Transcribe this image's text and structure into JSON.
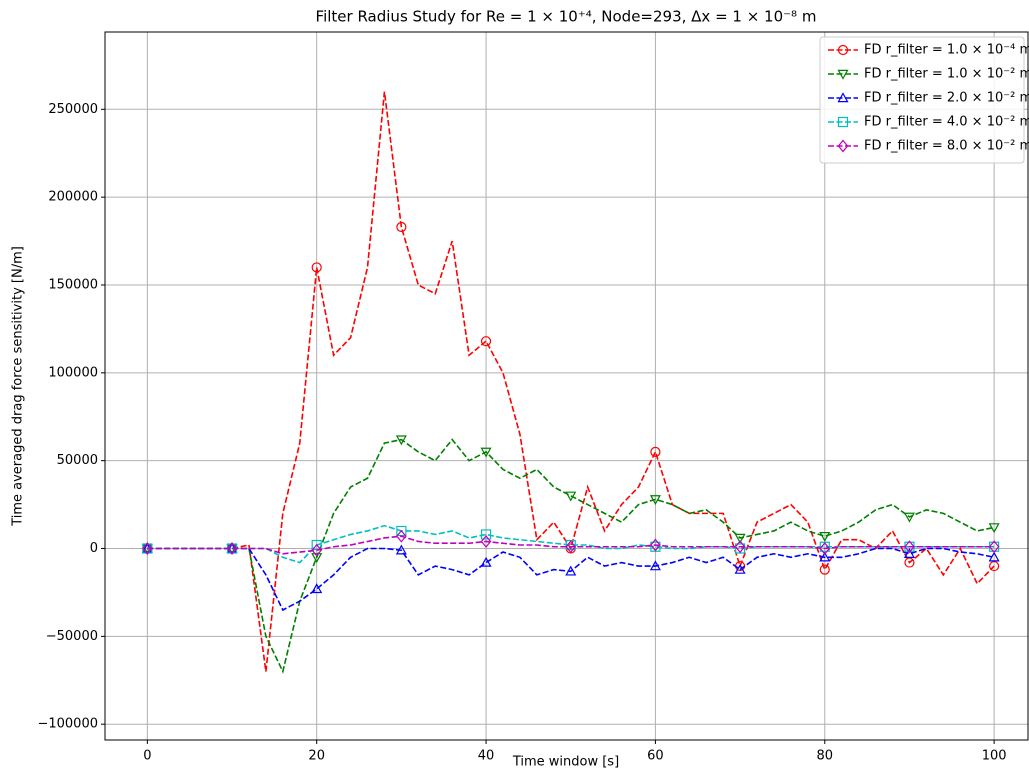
{
  "chart_data": {
    "type": "line",
    "title": "Filter Radius Study for Re = 1 × 10⁺⁴, Node=293, Δx = 1 × 10⁻⁸ m",
    "xlabel": "Time window [s]",
    "ylabel": "Time averaged drag force sensitivity [N/m]",
    "x": [
      0,
      2,
      4,
      6,
      8,
      10,
      12,
      14,
      16,
      18,
      20,
      22,
      24,
      26,
      28,
      30,
      32,
      34,
      36,
      38,
      40,
      42,
      44,
      46,
      48,
      50,
      52,
      54,
      56,
      58,
      60,
      62,
      64,
      66,
      68,
      70,
      72,
      74,
      76,
      78,
      80,
      82,
      84,
      86,
      88,
      90,
      92,
      94,
      96,
      98,
      100
    ],
    "series": [
      {
        "name": "FD r_filter = 1.0 × 10⁻⁴ m",
        "color": "#ff0000",
        "marker": "circle",
        "values": [
          0,
          0,
          0,
          0,
          0,
          0,
          2000,
          -70000,
          20000,
          60000,
          160000,
          110000,
          120000,
          160000,
          260000,
          183000,
          150000,
          145000,
          175000,
          110000,
          118000,
          100000,
          65000,
          5000,
          15000,
          0,
          35000,
          10000,
          25000,
          35000,
          55000,
          25000,
          20000,
          20000,
          20000,
          -10000,
          15000,
          20000,
          25000,
          15000,
          -12000,
          5000,
          5000,
          0,
          10000,
          -8000,
          0,
          -15000,
          0,
          -20000,
          -10000
        ]
      },
      {
        "name": "FD r_filter = 1.0 × 10⁻² m",
        "color": "#008000",
        "marker": "triangle-down",
        "values": [
          0,
          0,
          0,
          0,
          0,
          0,
          0,
          -50000,
          -70000,
          -30000,
          -5000,
          20000,
          35000,
          40000,
          60000,
          62000,
          55000,
          50000,
          62000,
          50000,
          55000,
          45000,
          40000,
          45000,
          35000,
          30000,
          25000,
          20000,
          15000,
          25000,
          28000,
          25000,
          20000,
          22000,
          15000,
          6000,
          8000,
          10000,
          15000,
          10000,
          7000,
          10000,
          15000,
          22000,
          25000,
          18000,
          22000,
          20000,
          15000,
          10000,
          12000
        ]
      },
      {
        "name": "FD r_filter = 2.0 × 10⁻² m",
        "color": "#0000ff",
        "marker": "triangle-up",
        "values": [
          0,
          0,
          0,
          0,
          0,
          0,
          0,
          -15000,
          -35000,
          -30000,
          -23000,
          -15000,
          -5000,
          0,
          0,
          -1000,
          -15000,
          -10000,
          -12000,
          -15000,
          -8000,
          -2000,
          -5000,
          -15000,
          -12000,
          -13000,
          -5000,
          -10000,
          -8000,
          -10000,
          -10000,
          -8000,
          -5000,
          -8000,
          -5000,
          -12000,
          -5000,
          -3000,
          -5000,
          -3000,
          -5000,
          -5000,
          -3000,
          0,
          0,
          -3000,
          0,
          0,
          -2000,
          -3000,
          -5000
        ]
      },
      {
        "name": "FD r_filter = 4.0 × 10⁻² m",
        "color": "#00bfbf",
        "marker": "square",
        "values": [
          0,
          0,
          0,
          0,
          0,
          0,
          0,
          0,
          -5000,
          -8000,
          2000,
          5000,
          8000,
          10000,
          13000,
          10000,
          10000,
          8000,
          10000,
          6000,
          8000,
          6000,
          5000,
          4000,
          3000,
          2000,
          2000,
          0,
          0,
          2000,
          1000,
          0,
          0,
          1000,
          1000,
          0,
          1000,
          1000,
          1000,
          1000,
          1000,
          1000,
          1000,
          1000,
          1000,
          1000,
          1000,
          1000,
          1000,
          1000,
          1000
        ]
      },
      {
        "name": "FD r_filter = 8.0 × 10⁻² m",
        "color": "#bf00bf",
        "marker": "diamond",
        "values": [
          0,
          0,
          0,
          0,
          0,
          0,
          0,
          0,
          -3000,
          -2000,
          -1000,
          1000,
          2000,
          4000,
          6000,
          7000,
          4000,
          3000,
          3000,
          3000,
          4000,
          3000,
          2000,
          2000,
          1000,
          1000,
          1000,
          1000,
          1000,
          1000,
          2000,
          1000,
          1000,
          1000,
          1000,
          1000,
          1000,
          1000,
          1000,
          1000,
          0,
          1000,
          1000,
          1000,
          1000,
          1000,
          1000,
          1000,
          1000,
          1000,
          1000
        ]
      }
    ],
    "marker_every": 10,
    "xlim": [
      -5,
      104
    ],
    "xticks": [
      0,
      20,
      40,
      60,
      80,
      100
    ],
    "ylim": [
      -109000,
      294000
    ],
    "yticks": [
      {
        "value": -100000,
        "label": "−100000"
      },
      {
        "value": -50000,
        "label": "−50000"
      },
      0,
      50000,
      100000,
      150000,
      200000,
      250000
    ],
    "grid": true,
    "legend": "upper right"
  }
}
